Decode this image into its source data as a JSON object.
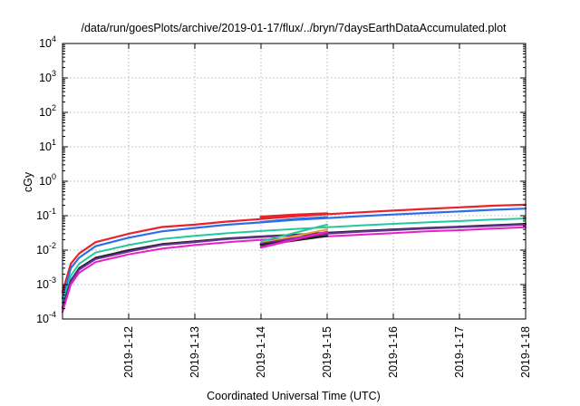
{
  "chart_data": {
    "type": "line",
    "title": "/data/run/goesPlots/archive/2019-01-17/flux/../bryn/7daysEarthDataAccumulated.plot",
    "xlabel": "Coordinated Universal Time (UTC)",
    "ylabel": "cGy",
    "y_scale": "log",
    "ylim": [
      0.0001,
      10000
    ],
    "xlim": [
      "2019-01-11T00:00",
      "2019-01-18T00:00"
    ],
    "grid": true,
    "legend": "none",
    "x_ticks": [
      "2019-1-12",
      "2019-1-13",
      "2019-1-14",
      "2019-1-15",
      "2019-1-16",
      "2019-1-17",
      "2019-1-18"
    ],
    "y_ticks": [
      {
        "base": "10",
        "exp": "-4"
      },
      {
        "base": "10",
        "exp": "-3"
      },
      {
        "base": "10",
        "exp": "-2"
      },
      {
        "base": "10",
        "exp": "-1"
      },
      {
        "base": "10",
        "exp": "0"
      },
      {
        "base": "10",
        "exp": "1"
      },
      {
        "base": "10",
        "exp": "2"
      },
      {
        "base": "10",
        "exp": "3"
      },
      {
        "base": "10",
        "exp": "4"
      }
    ],
    "series": [
      {
        "color": "#e8242a",
        "width": 2.2,
        "x": [
          "2019-01-11T00:00",
          "2019-01-11T03:00",
          "2019-01-11T06:00",
          "2019-01-11T12:00",
          "2019-01-12T00:00",
          "2019-01-12T12:00",
          "2019-01-13T00:00",
          "2019-01-13T12:00",
          "2019-01-14T00:00",
          "2019-01-14T12:00",
          "2019-01-15T00:00",
          "2019-01-15T12:00",
          "2019-01-16T00:00",
          "2019-01-16T12:00",
          "2019-01-17T00:00",
          "2019-01-17T12:00",
          "2019-01-18T00:00"
        ],
        "y": [
          0.0006,
          0.004,
          0.008,
          0.017,
          0.03,
          0.047,
          0.055,
          0.068,
          0.08,
          0.095,
          0.11,
          0.125,
          0.14,
          0.158,
          0.175,
          0.195,
          0.21
        ]
      },
      {
        "color": "#2d6ee8",
        "width": 2.2,
        "x": [
          "2019-01-11T00:00",
          "2019-01-11T03:00",
          "2019-01-11T06:00",
          "2019-01-11T12:00",
          "2019-01-12T00:00",
          "2019-01-12T12:00",
          "2019-01-13T00:00",
          "2019-01-13T12:00",
          "2019-01-14T00:00",
          "2019-01-14T12:00",
          "2019-01-15T00:00",
          "2019-01-15T12:00",
          "2019-01-16T00:00",
          "2019-01-16T12:00",
          "2019-01-17T00:00",
          "2019-01-17T12:00",
          "2019-01-18T00:00"
        ],
        "y": [
          0.0004,
          0.003,
          0.006,
          0.013,
          0.023,
          0.035,
          0.044,
          0.055,
          0.064,
          0.075,
          0.085,
          0.097,
          0.108,
          0.12,
          0.133,
          0.148,
          0.16
        ]
      },
      {
        "color": "#28c6a0",
        "width": 2,
        "x": [
          "2019-01-11T00:00",
          "2019-01-11T03:00",
          "2019-01-11T06:00",
          "2019-01-11T12:00",
          "2019-01-12T00:00",
          "2019-01-12T12:00",
          "2019-01-13T00:00",
          "2019-01-13T12:00",
          "2019-01-14T00:00",
          "2019-01-14T12:00",
          "2019-01-15T00:00",
          "2019-01-15T12:00",
          "2019-01-16T00:00",
          "2019-01-16T12:00",
          "2019-01-17T00:00",
          "2019-01-17T12:00",
          "2019-01-18T00:00"
        ],
        "y": [
          0.0003,
          0.0018,
          0.004,
          0.0085,
          0.014,
          0.021,
          0.026,
          0.031,
          0.036,
          0.041,
          0.046,
          0.052,
          0.058,
          0.064,
          0.07,
          0.077,
          0.083
        ]
      },
      {
        "color": "#222222",
        "width": 2,
        "x": [
          "2019-01-11T00:00",
          "2019-01-11T03:00",
          "2019-01-11T06:00",
          "2019-01-11T12:00",
          "2019-01-12T00:00",
          "2019-01-12T12:00",
          "2019-01-13T00:00",
          "2019-01-13T12:00",
          "2019-01-14T00:00",
          "2019-01-14T12:00",
          "2019-01-15T00:00",
          "2019-01-15T12:00",
          "2019-01-16T00:00",
          "2019-01-16T12:00",
          "2019-01-17T00:00",
          "2019-01-17T12:00",
          "2019-01-18T00:00"
        ],
        "y": [
          0.00022,
          0.0013,
          0.003,
          0.006,
          0.01,
          0.015,
          0.018,
          0.022,
          0.025,
          0.028,
          0.032,
          0.036,
          0.04,
          0.044,
          0.048,
          0.053,
          0.058
        ]
      },
      {
        "color": "#7030a0",
        "width": 2,
        "x": [
          "2019-01-11T00:00",
          "2019-01-11T03:00",
          "2019-01-11T06:00",
          "2019-01-11T12:00",
          "2019-01-12T00:00",
          "2019-01-12T12:00",
          "2019-01-13T00:00",
          "2019-01-13T12:00",
          "2019-01-14T00:00",
          "2019-01-14T12:00",
          "2019-01-15T00:00",
          "2019-01-15T12:00",
          "2019-01-16T00:00",
          "2019-01-16T12:00",
          "2019-01-17T00:00",
          "2019-01-17T12:00",
          "2019-01-18T00:00"
        ],
        "y": [
          0.0002,
          0.0012,
          0.0027,
          0.0055,
          0.009,
          0.014,
          0.017,
          0.021,
          0.024,
          0.027,
          0.03,
          0.034,
          0.038,
          0.042,
          0.046,
          0.05,
          0.055
        ]
      },
      {
        "color": "#e81ec8",
        "width": 2,
        "x": [
          "2019-01-11T00:00",
          "2019-01-11T03:00",
          "2019-01-11T06:00",
          "2019-01-11T12:00",
          "2019-01-12T00:00",
          "2019-01-12T12:00",
          "2019-01-13T00:00",
          "2019-01-13T12:00",
          "2019-01-14T00:00",
          "2019-01-14T12:00",
          "2019-01-15T00:00",
          "2019-01-15T12:00",
          "2019-01-16T00:00",
          "2019-01-16T12:00",
          "2019-01-17T00:00",
          "2019-01-17T12:00",
          "2019-01-18T00:00"
        ],
        "y": [
          0.00016,
          0.001,
          0.0022,
          0.0045,
          0.0075,
          0.011,
          0.014,
          0.017,
          0.02,
          0.022,
          0.025,
          0.028,
          0.031,
          0.035,
          0.038,
          0.042,
          0.046
        ]
      },
      {
        "color": "#e8242a",
        "width": 3,
        "x": [
          "2019-01-14T00:00",
          "2019-01-14T12:00",
          "2019-01-15T00:00"
        ],
        "y": [
          0.092,
          0.105,
          0.115
        ]
      },
      {
        "color": "#2d6ee8",
        "width": 2.5,
        "x": [
          "2019-01-14T00:00",
          "2019-01-14T12:00",
          "2019-01-15T00:00"
        ],
        "y": [
          0.065,
          0.08,
          0.09
        ]
      },
      {
        "color": "#28c6a0",
        "width": 2,
        "x": [
          "2019-01-14T00:00",
          "2019-01-15T00:00"
        ],
        "y": [
          0.018,
          0.055
        ]
      },
      {
        "color": "#e8a020",
        "width": 2,
        "x": [
          "2019-01-14T00:00",
          "2019-01-15T00:00"
        ],
        "y": [
          0.016,
          0.04
        ]
      },
      {
        "color": "#7030a0",
        "width": 3,
        "x": [
          "2019-01-14T00:00",
          "2019-01-15T00:00"
        ],
        "y": [
          0.015,
          0.031
        ]
      },
      {
        "color": "#222222",
        "width": 2.5,
        "x": [
          "2019-01-14T00:00",
          "2019-01-15T00:00"
        ],
        "y": [
          0.014,
          0.026
        ]
      },
      {
        "color": "#e81ec8",
        "width": 2.5,
        "x": [
          "2019-01-14T00:00",
          "2019-01-15T00:00"
        ],
        "y": [
          0.012,
          0.034
        ]
      }
    ]
  }
}
